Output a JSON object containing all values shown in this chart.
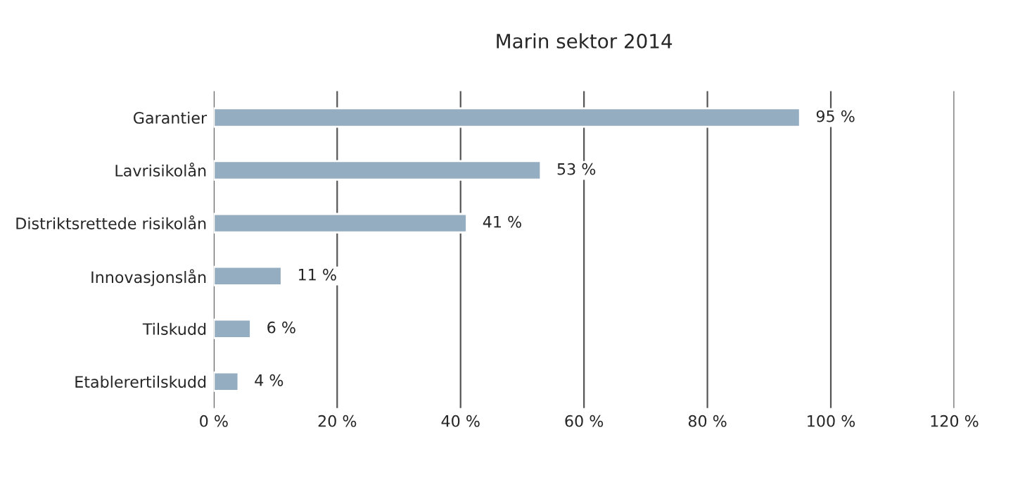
{
  "chart_data": {
    "type": "bar",
    "orientation": "horizontal",
    "title": "Marin sektor 2014",
    "categories": [
      "Garantier",
      "Lavrisikolån",
      "Distriktsrettede risikolån",
      "Innovasjonslån",
      "Tilskudd",
      "Etablerertilskudd"
    ],
    "values": [
      95,
      53,
      41,
      11,
      6,
      4
    ],
    "value_labels": [
      "95 %",
      "53 %",
      "41 %",
      "11 %",
      "6 %",
      "4 %"
    ],
    "color": "#94adc0",
    "xlim": [
      0,
      120
    ],
    "xticks": [
      {
        "value": 0,
        "label": "0 %"
      },
      {
        "value": 20,
        "label": "20 %"
      },
      {
        "value": 40,
        "label": "40 %"
      },
      {
        "value": 60,
        "label": "60 %"
      },
      {
        "value": 80,
        "label": "80 %"
      },
      {
        "value": 100,
        "label": "100 %"
      },
      {
        "value": 120,
        "label": "120 %"
      }
    ],
    "grid": "x"
  }
}
